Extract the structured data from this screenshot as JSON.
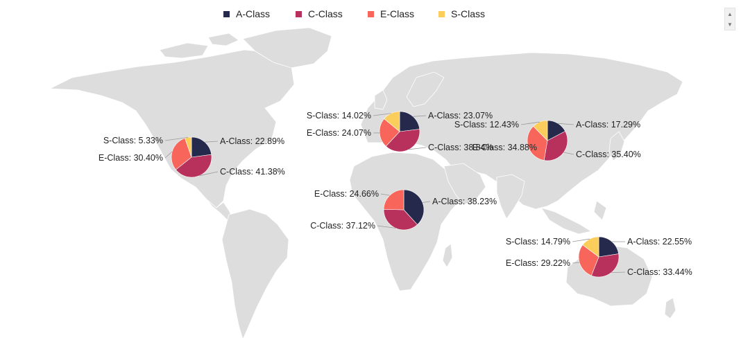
{
  "legend": [
    {
      "name": "A-Class",
      "color": "#252a4d"
    },
    {
      "name": "C-Class",
      "color": "#b8305c"
    },
    {
      "name": "E-Class",
      "color": "#f7655b"
    },
    {
      "name": "S-Class",
      "color": "#fbcd5b"
    }
  ],
  "scroll": {
    "up_icon": "triangle-up-icon",
    "down_icon": "triangle-down-icon"
  },
  "map": {
    "land_color": "#dddddd",
    "border_color": "#ffffff"
  },
  "chart_data": {
    "type": "pie",
    "series_names": [
      "A-Class",
      "C-Class",
      "E-Class",
      "S-Class"
    ],
    "regions": [
      {
        "id": "north-america",
        "slices": [
          {
            "name": "A-Class",
            "value": 22.89,
            "label": "A-Class: 22.89%"
          },
          {
            "name": "C-Class",
            "value": 41.38,
            "label": "C-Class: 41.38%"
          },
          {
            "name": "E-Class",
            "value": 30.4,
            "label": "E-Class: 30.40%"
          },
          {
            "name": "S-Class",
            "value": 5.33,
            "label": "S-Class: 5.33%"
          }
        ]
      },
      {
        "id": "europe",
        "slices": [
          {
            "name": "A-Class",
            "value": 23.07,
            "label": "A-Class: 23.07%"
          },
          {
            "name": "C-Class",
            "value": 38.84,
            "label": "C-Class: 38.84%"
          },
          {
            "name": "E-Class",
            "value": 24.07,
            "label": "E-Class: 24.07%"
          },
          {
            "name": "S-Class",
            "value": 14.02,
            "label": "S-Class: 14.02%"
          }
        ]
      },
      {
        "id": "asia",
        "slices": [
          {
            "name": "A-Class",
            "value": 17.29,
            "label": "A-Class: 17.29%"
          },
          {
            "name": "C-Class",
            "value": 35.4,
            "label": "C-Class: 35.40%"
          },
          {
            "name": "E-Class",
            "value": 34.88,
            "label": "E-Class: 34.88%"
          },
          {
            "name": "S-Class",
            "value": 12.43,
            "label": "S-Class: 12.43%"
          }
        ]
      },
      {
        "id": "africa",
        "slices": [
          {
            "name": "A-Class",
            "value": 38.23,
            "label": "A-Class: 38.23%"
          },
          {
            "name": "C-Class",
            "value": 37.12,
            "label": "C-Class: 37.12%"
          },
          {
            "name": "E-Class",
            "value": 24.66,
            "label": "E-Class: 24.66%"
          }
        ]
      },
      {
        "id": "oceania",
        "slices": [
          {
            "name": "A-Class",
            "value": 22.55,
            "label": "A-Class: 22.55%"
          },
          {
            "name": "C-Class",
            "value": 33.44,
            "label": "C-Class: 33.44%"
          },
          {
            "name": "E-Class",
            "value": 29.22,
            "label": "E-Class: 29.22%"
          },
          {
            "name": "S-Class",
            "value": 14.79,
            "label": "S-Class: 14.79%"
          }
        ]
      }
    ]
  }
}
